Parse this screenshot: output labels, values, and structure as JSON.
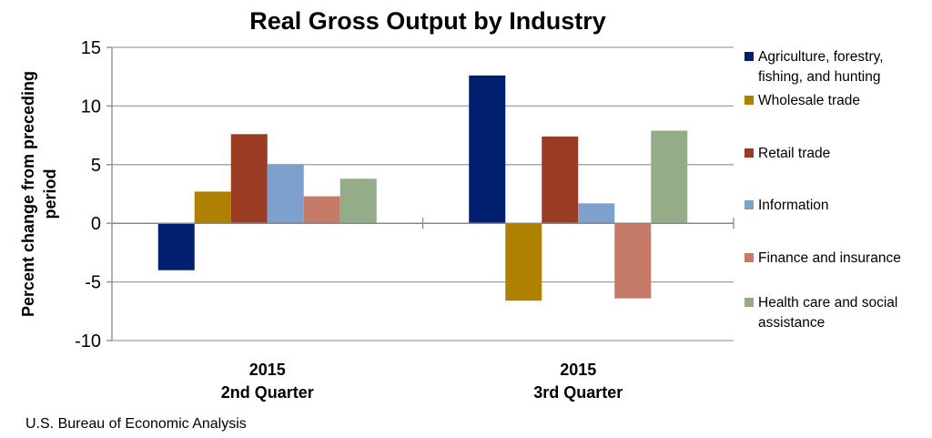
{
  "chart_data": {
    "type": "bar",
    "title": "Real Gross Output by Industry",
    "xlabel": "",
    "ylabel": "Percent change from preceding period",
    "ylim": [
      -10,
      15
    ],
    "yticks": [
      15,
      10,
      5,
      0,
      -5,
      -10
    ],
    "grid": true,
    "legend_position": "right",
    "categories": [
      [
        "2015",
        "2nd Quarter"
      ],
      [
        "2015",
        "3rd Quarter"
      ]
    ],
    "series": [
      {
        "name": "Agriculture, forestry, fishing, and hunting",
        "name_lines": [
          "Agriculture, forestry,",
          "fishing, and hunting"
        ],
        "color": "#001f6e",
        "values": [
          -4.0,
          12.6
        ]
      },
      {
        "name": "Wholesale trade",
        "name_lines": [
          "Wholesale trade"
        ],
        "color": "#b08000",
        "values": [
          2.7,
          -6.6
        ]
      },
      {
        "name": "Retail trade",
        "name_lines": [
          "Retail trade"
        ],
        "color": "#9a3c24",
        "values": [
          7.6,
          7.4
        ]
      },
      {
        "name": "Information",
        "name_lines": [
          "Information"
        ],
        "color": "#7ea0cc",
        "values": [
          5.0,
          1.7
        ]
      },
      {
        "name": "Finance and insurance",
        "name_lines": [
          "Finance and insurance"
        ],
        "color": "#c47a66",
        "values": [
          2.3,
          -6.4
        ]
      },
      {
        "name": "Health care and social assistance",
        "name_lines": [
          "Health care and social",
          "assistance"
        ],
        "color": "#94ad88",
        "values": [
          3.8,
          7.9
        ]
      }
    ]
  },
  "source": "U.S. Bureau of Economic Analysis"
}
